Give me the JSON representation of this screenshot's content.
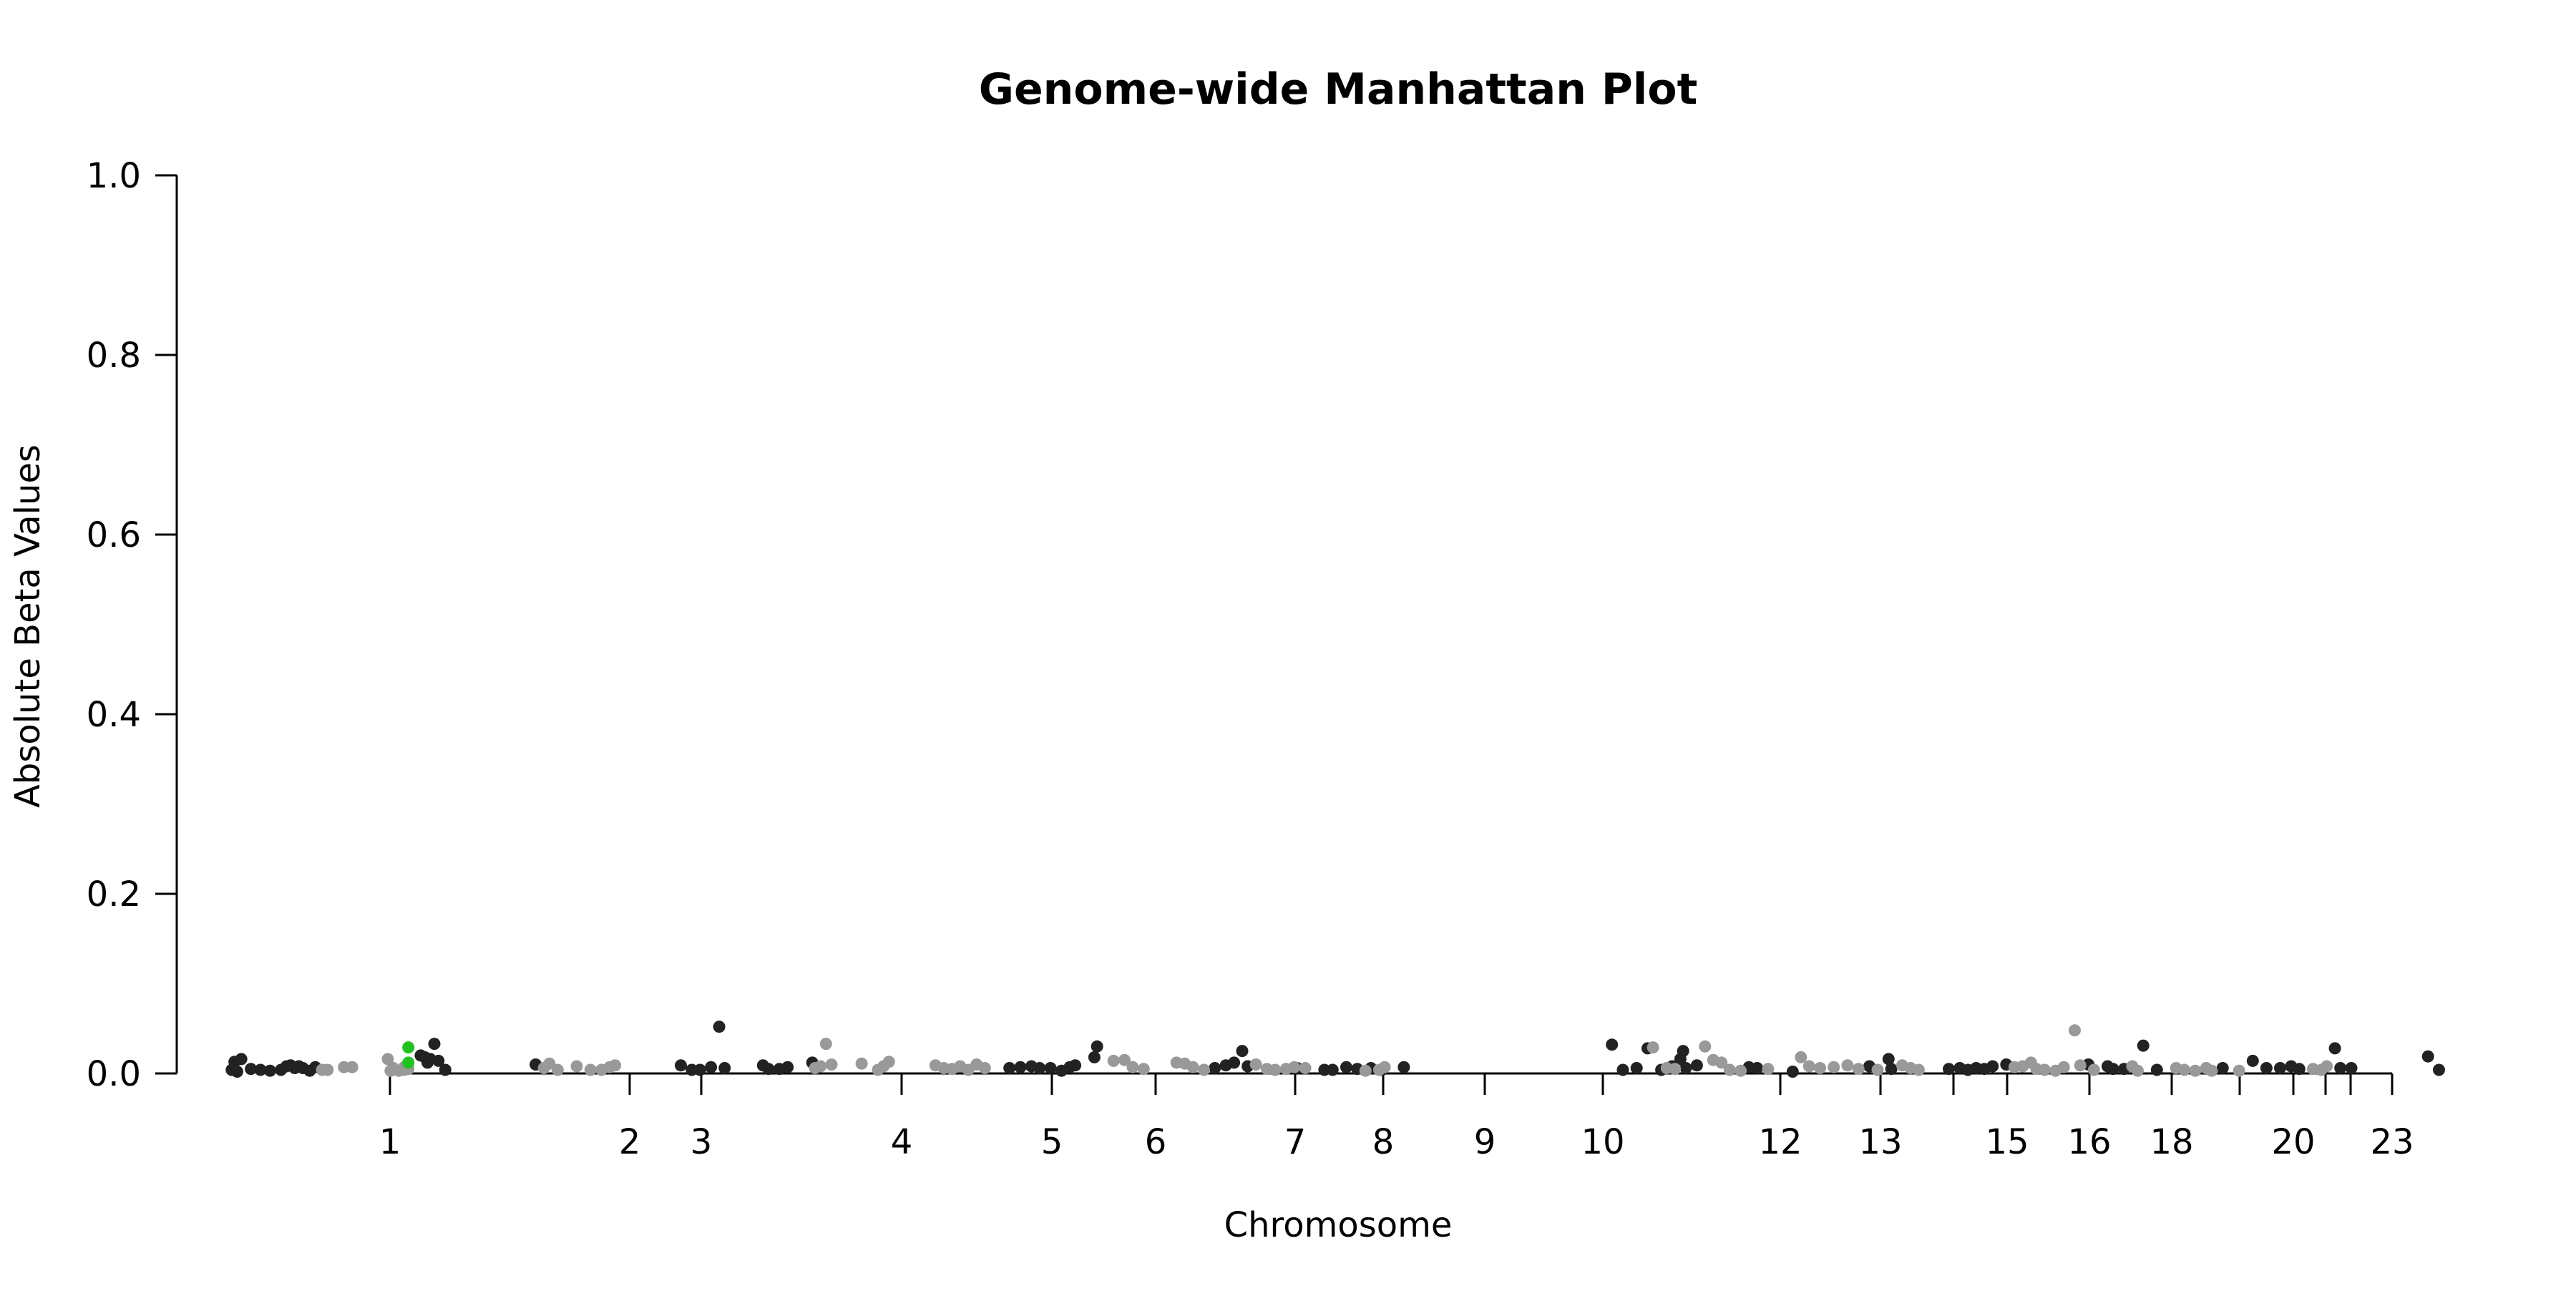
{
  "chart_data": {
    "type": "scatter",
    "title": "Genome-wide Manhattan Plot",
    "xlabel": "Chromosome",
    "ylabel": "Absolute Beta Values",
    "ylim": [
      0,
      1
    ],
    "yticks": [
      "0.0",
      "0.2",
      "0.4",
      "0.6",
      "0.8",
      "1.0"
    ],
    "xticks": [
      "1",
      "2",
      "3",
      "4",
      "5",
      "6",
      "7",
      "8",
      "9",
      "10",
      "12",
      "13",
      "15",
      "16",
      "18",
      "20",
      "23"
    ],
    "grid": false,
    "legend": "none",
    "colors": {
      "dark": "#222222",
      "light": "#999999",
      "highlight": "#1fc21f"
    },
    "series": [
      {
        "group": "dark",
        "points": [
          [
            0.01,
            0.004
          ],
          [
            0.02,
            0.013
          ],
          [
            0.03,
            0.002
          ],
          [
            0.045,
            0.016
          ],
          [
            0.08,
            0.005
          ],
          [
            0.115,
            0.004
          ],
          [
            0.15,
            0.003
          ],
          [
            0.19,
            0.004
          ],
          [
            0.21,
            0.008
          ],
          [
            0.225,
            0.009
          ],
          [
            0.24,
            0.006
          ],
          [
            0.255,
            0.008
          ],
          [
            0.27,
            0.006
          ],
          [
            0.295,
            0.003
          ],
          [
            0.315,
            0.007
          ],
          [
            0.7,
            0.02
          ],
          [
            0.715,
            0.018
          ],
          [
            0.725,
            0.012
          ],
          [
            0.735,
            0.016
          ],
          [
            0.75,
            0.033
          ],
          [
            0.765,
            0.014
          ],
          [
            0.79,
            0.004
          ],
          [
            1.12,
            0.01
          ],
          [
            1.65,
            0.009
          ],
          [
            1.69,
            0.004
          ],
          [
            1.72,
            0.004
          ],
          [
            1.76,
            0.007
          ],
          [
            1.79,
            0.052
          ],
          [
            1.81,
            0.006
          ],
          [
            1.95,
            0.009
          ],
          [
            1.97,
            0.005
          ],
          [
            2.01,
            0.005
          ],
          [
            2.04,
            0.007
          ],
          [
            2.13,
            0.012
          ],
          [
            2.85,
            0.006
          ],
          [
            2.89,
            0.007
          ],
          [
            2.93,
            0.008
          ],
          [
            2.96,
            0.006
          ],
          [
            3.0,
            0.006
          ],
          [
            3.04,
            0.003
          ],
          [
            3.07,
            0.007
          ],
          [
            3.09,
            0.009
          ],
          [
            3.16,
            0.018
          ],
          [
            3.17,
            0.03
          ],
          [
            3.6,
            0.006
          ],
          [
            3.64,
            0.009
          ],
          [
            3.67,
            0.012
          ],
          [
            3.7,
            0.025
          ],
          [
            3.72,
            0.008
          ],
          [
            3.9,
            0.006
          ],
          [
            4.0,
            0.004
          ],
          [
            4.03,
            0.004
          ],
          [
            4.08,
            0.007
          ],
          [
            4.12,
            0.005
          ],
          [
            4.17,
            0.006
          ],
          [
            4.21,
            0.004
          ],
          [
            4.29,
            0.007
          ],
          [
            5.05,
            0.032
          ],
          [
            5.09,
            0.004
          ],
          [
            5.14,
            0.006
          ],
          [
            5.18,
            0.028
          ],
          [
            5.23,
            0.004
          ],
          [
            5.27,
            0.008
          ],
          [
            5.3,
            0.016
          ],
          [
            5.31,
            0.025
          ],
          [
            5.32,
            0.006
          ],
          [
            5.36,
            0.009
          ],
          [
            5.55,
            0.007
          ],
          [
            5.58,
            0.006
          ],
          [
            5.71,
            0.002
          ],
          [
            5.99,
            0.008
          ],
          [
            6.06,
            0.016
          ],
          [
            6.07,
            0.005
          ],
          [
            6.28,
            0.005
          ],
          [
            6.32,
            0.006
          ],
          [
            6.35,
            0.004
          ],
          [
            6.38,
            0.006
          ],
          [
            6.41,
            0.005
          ],
          [
            6.44,
            0.008
          ],
          [
            6.49,
            0.01
          ],
          [
            6.79,
            0.01
          ],
          [
            6.86,
            0.008
          ],
          [
            6.88,
            0.005
          ],
          [
            6.92,
            0.005
          ],
          [
            6.99,
            0.031
          ],
          [
            7.04,
            0.004
          ],
          [
            7.28,
            0.006
          ],
          [
            7.39,
            0.014
          ],
          [
            7.44,
            0.006
          ],
          [
            7.49,
            0.006
          ],
          [
            7.53,
            0.008
          ],
          [
            7.56,
            0.005
          ],
          [
            7.69,
            0.028
          ],
          [
            7.71,
            0.006
          ],
          [
            7.75,
            0.006
          ],
          [
            8.03,
            0.019
          ],
          [
            8.07,
            0.004
          ]
        ]
      },
      {
        "group": "light",
        "points": [
          [
            0.34,
            0.004
          ],
          [
            0.36,
            0.004
          ],
          [
            0.42,
            0.007
          ],
          [
            0.45,
            0.007
          ],
          [
            0.6,
            0.006
          ],
          [
            0.64,
            0.007
          ],
          [
            0.58,
            0.016
          ],
          [
            0.59,
            0.003
          ],
          [
            0.62,
            0.003
          ],
          [
            0.64,
            0.004
          ],
          [
            0.655,
            0.005
          ],
          [
            1.15,
            0.006
          ],
          [
            1.17,
            0.011
          ],
          [
            1.2,
            0.004
          ],
          [
            1.27,
            0.008
          ],
          [
            1.32,
            0.004
          ],
          [
            1.36,
            0.004
          ],
          [
            1.39,
            0.007
          ],
          [
            1.41,
            0.009
          ],
          [
            2.14,
            0.006
          ],
          [
            2.16,
            0.008
          ],
          [
            2.18,
            0.033
          ],
          [
            2.2,
            0.01
          ],
          [
            2.31,
            0.011
          ],
          [
            2.37,
            0.004
          ],
          [
            2.39,
            0.008
          ],
          [
            2.41,
            0.013
          ],
          [
            2.58,
            0.009
          ],
          [
            2.61,
            0.006
          ],
          [
            2.64,
            0.005
          ],
          [
            2.67,
            0.008
          ],
          [
            2.7,
            0.004
          ],
          [
            2.73,
            0.01
          ],
          [
            2.76,
            0.006
          ],
          [
            3.23,
            0.014
          ],
          [
            3.27,
            0.015
          ],
          [
            3.3,
            0.007
          ],
          [
            3.34,
            0.005
          ],
          [
            3.46,
            0.012
          ],
          [
            3.49,
            0.011
          ],
          [
            3.52,
            0.007
          ],
          [
            3.56,
            0.004
          ],
          [
            3.75,
            0.01
          ],
          [
            3.79,
            0.005
          ],
          [
            3.82,
            0.004
          ],
          [
            3.86,
            0.005
          ],
          [
            3.89,
            0.007
          ],
          [
            3.93,
            0.006
          ],
          [
            4.15,
            0.003
          ],
          [
            4.2,
            0.004
          ],
          [
            4.22,
            0.007
          ],
          [
            5.2,
            0.029
          ],
          [
            5.25,
            0.006
          ],
          [
            5.28,
            0.005
          ],
          [
            5.39,
            0.03
          ],
          [
            5.42,
            0.015
          ],
          [
            5.45,
            0.012
          ],
          [
            5.48,
            0.004
          ],
          [
            5.52,
            0.003
          ],
          [
            5.62,
            0.005
          ],
          [
            5.74,
            0.018
          ],
          [
            5.77,
            0.008
          ],
          [
            5.81,
            0.006
          ],
          [
            5.86,
            0.007
          ],
          [
            5.91,
            0.009
          ],
          [
            5.95,
            0.005
          ],
          [
            6.02,
            0.004
          ],
          [
            6.11,
            0.009
          ],
          [
            6.14,
            0.006
          ],
          [
            6.17,
            0.004
          ],
          [
            6.52,
            0.007
          ],
          [
            6.55,
            0.008
          ],
          [
            6.58,
            0.012
          ],
          [
            6.6,
            0.005
          ],
          [
            6.63,
            0.004
          ],
          [
            6.67,
            0.003
          ],
          [
            6.7,
            0.007
          ],
          [
            6.74,
            0.048
          ],
          [
            6.76,
            0.009
          ],
          [
            6.81,
            0.004
          ],
          [
            6.95,
            0.008
          ],
          [
            6.97,
            0.003
          ],
          [
            7.11,
            0.006
          ],
          [
            7.14,
            0.004
          ],
          [
            7.18,
            0.003
          ],
          [
            7.22,
            0.006
          ],
          [
            7.24,
            0.003
          ],
          [
            7.34,
            0.003
          ],
          [
            7.61,
            0.005
          ],
          [
            7.64,
            0.004
          ],
          [
            7.66,
            0.008
          ]
        ]
      },
      {
        "group": "highlight",
        "points": [
          [
            0.655,
            0.029
          ],
          [
            0.655,
            0.012
          ]
        ]
      }
    ]
  }
}
